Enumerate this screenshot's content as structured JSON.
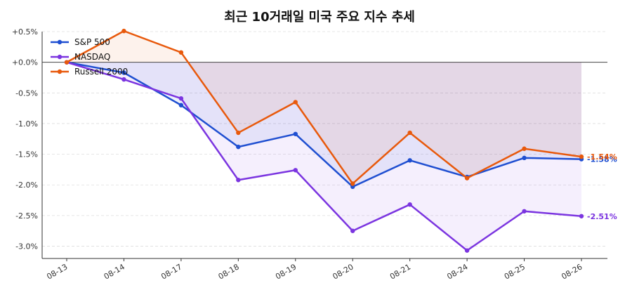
{
  "chart_data": {
    "type": "line",
    "title": "최근 10거래일 미국 주요 지수 추세",
    "xlabel": "",
    "ylabel": "",
    "categories": [
      "08-13",
      "08-14",
      "08-17",
      "08-18",
      "08-19",
      "08-20",
      "08-21",
      "08-24",
      "08-25",
      "08-26"
    ],
    "ylim": [
      -3.2,
      0.5
    ],
    "yticks": [
      0.5,
      0.0,
      -0.5,
      -1.0,
      -1.5,
      -2.0,
      -2.5,
      -3.0
    ],
    "ytick_labels": [
      "+0.5%",
      "+0.0%",
      "-0.5%",
      "-1.0%",
      "-1.5%",
      "-2.0%",
      "-2.5%",
      "-3.0%"
    ],
    "grid": "horizontal dashed",
    "legend_position": "top-left",
    "series": [
      {
        "name": "S&P 500",
        "color": "#1f4fd1",
        "values": [
          0.0,
          -0.17,
          -0.7,
          -1.38,
          -1.17,
          -2.03,
          -1.6,
          -1.87,
          -1.56,
          -1.58
        ],
        "end_label": "-1.58%"
      },
      {
        "name": "NASDAQ",
        "color": "#7b35e0",
        "values": [
          0.0,
          -0.28,
          -0.59,
          -1.92,
          -1.76,
          -2.75,
          -2.32,
          -3.07,
          -2.43,
          -2.51
        ],
        "end_label": "-2.51%"
      },
      {
        "name": "Russell 2000",
        "color": "#e8590c",
        "values": [
          0.0,
          0.51,
          0.16,
          -1.15,
          -0.65,
          -1.98,
          -1.15,
          -1.89,
          -1.41,
          -1.54
        ],
        "end_label": "-1.54%"
      }
    ]
  }
}
